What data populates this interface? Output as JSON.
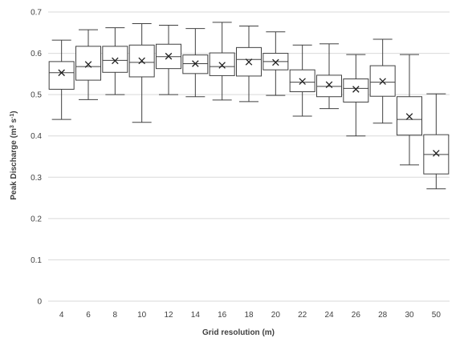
{
  "chart_data": {
    "type": "boxplot",
    "xlabel": "Grid resolution (m)",
    "ylabel": "Peak Discharge (m",
    "ylabel_sup": "3",
    "ylabel_mid": " s",
    "ylabel_sup2": "-1",
    "ylabel_end": ")",
    "ylim": [
      0,
      0.7
    ],
    "ytick_values": [
      0,
      0.1,
      0.2,
      0.3,
      0.4,
      0.5,
      0.6,
      0.7
    ],
    "ytick_labels": [
      "0",
      "0.1",
      "0.2",
      "0.3",
      "0.4",
      "0.5",
      "0.6",
      "0.7"
    ],
    "grid": true,
    "categories": [
      "4",
      "6",
      "8",
      "10",
      "12",
      "14",
      "16",
      "18",
      "20",
      "22",
      "24",
      "26",
      "28",
      "30",
      "50"
    ],
    "boxes": [
      {
        "min": 0.44,
        "q1": 0.513,
        "median": 0.553,
        "q3": 0.58,
        "max": 0.632,
        "mean": 0.553
      },
      {
        "min": 0.488,
        "q1": 0.535,
        "median": 0.568,
        "q3": 0.617,
        "max": 0.657,
        "mean": 0.573
      },
      {
        "min": 0.5,
        "q1": 0.554,
        "median": 0.583,
        "q3": 0.617,
        "max": 0.662,
        "mean": 0.582
      },
      {
        "min": 0.433,
        "q1": 0.543,
        "median": 0.578,
        "q3": 0.62,
        "max": 0.672,
        "mean": 0.582
      },
      {
        "min": 0.5,
        "q1": 0.563,
        "median": 0.592,
        "q3": 0.622,
        "max": 0.668,
        "mean": 0.593
      },
      {
        "min": 0.495,
        "q1": 0.551,
        "median": 0.575,
        "q3": 0.596,
        "max": 0.66,
        "mean": 0.575
      },
      {
        "min": 0.487,
        "q1": 0.546,
        "median": 0.568,
        "q3": 0.601,
        "max": 0.675,
        "mean": 0.571
      },
      {
        "min": 0.483,
        "q1": 0.545,
        "median": 0.585,
        "q3": 0.614,
        "max": 0.666,
        "mean": 0.579
      },
      {
        "min": 0.498,
        "q1": 0.56,
        "median": 0.58,
        "q3": 0.6,
        "max": 0.652,
        "mean": 0.578
      },
      {
        "min": 0.448,
        "q1": 0.507,
        "median": 0.53,
        "q3": 0.56,
        "max": 0.62,
        "mean": 0.532
      },
      {
        "min": 0.466,
        "q1": 0.495,
        "median": 0.52,
        "q3": 0.547,
        "max": 0.623,
        "mean": 0.524
      },
      {
        "min": 0.4,
        "q1": 0.482,
        "median": 0.515,
        "q3": 0.538,
        "max": 0.597,
        "mean": 0.513
      },
      {
        "min": 0.431,
        "q1": 0.496,
        "median": 0.53,
        "q3": 0.57,
        "max": 0.634,
        "mean": 0.532
      },
      {
        "min": 0.33,
        "q1": 0.402,
        "median": 0.44,
        "q3": 0.495,
        "max": 0.597,
        "mean": 0.447
      },
      {
        "min": 0.272,
        "q1": 0.308,
        "median": 0.355,
        "q3": 0.403,
        "max": 0.502,
        "mean": 0.358
      }
    ]
  }
}
